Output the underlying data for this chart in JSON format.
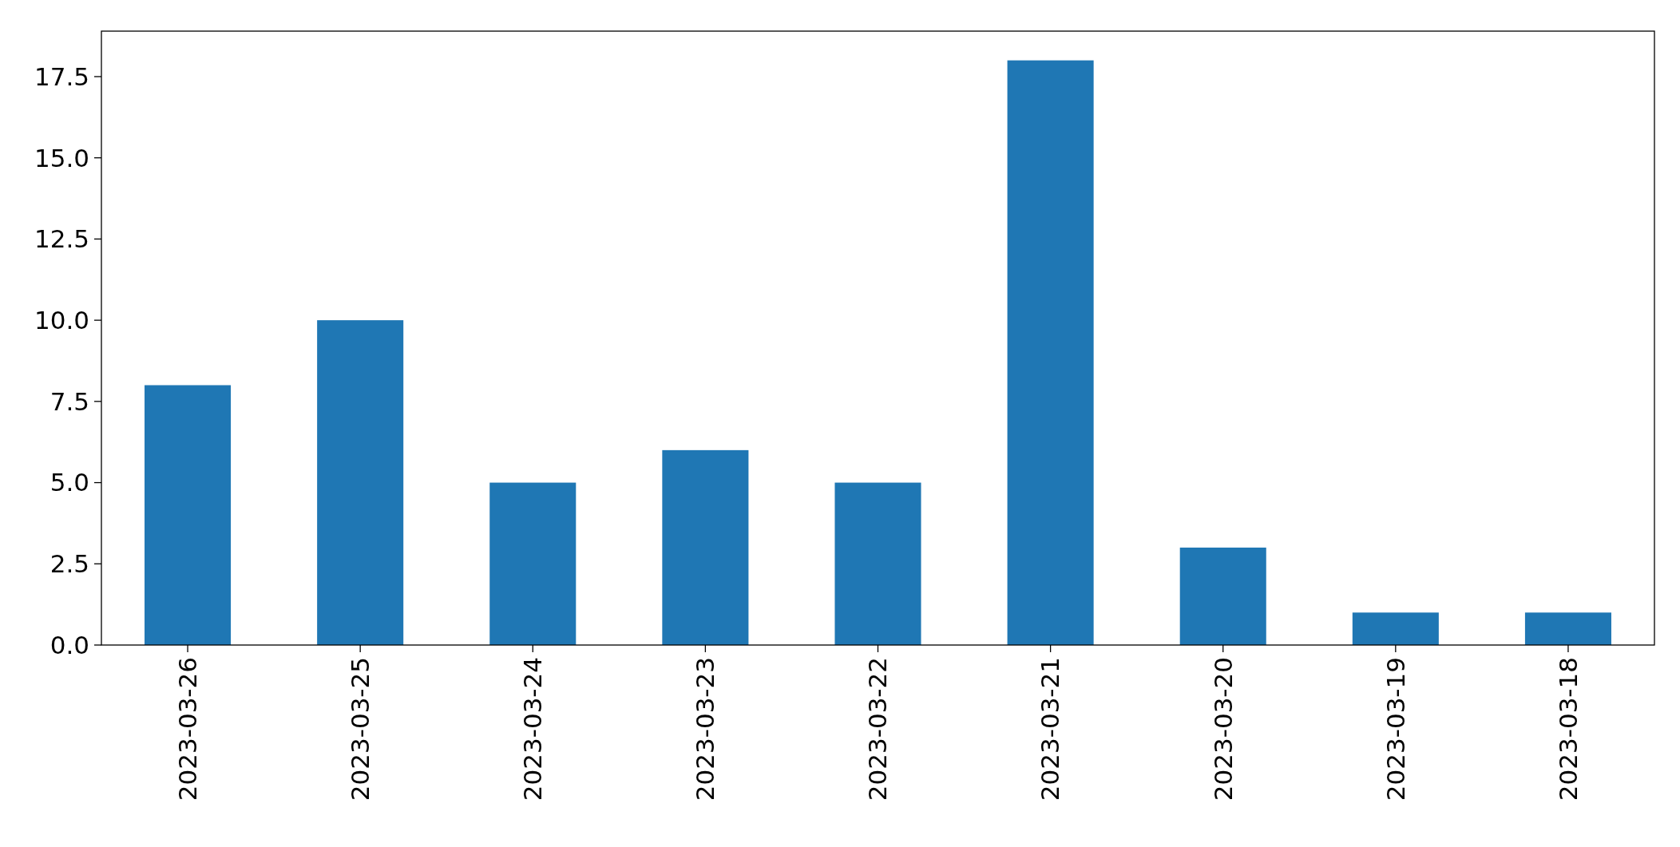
{
  "chart_data": {
    "type": "bar",
    "categories": [
      "2023-03-26",
      "2023-03-25",
      "2023-03-24",
      "2023-03-23",
      "2023-03-22",
      "2023-03-21",
      "2023-03-20",
      "2023-03-19",
      "2023-03-18"
    ],
    "values": [
      8,
      10,
      5,
      6,
      5,
      18,
      3,
      1,
      1
    ],
    "color": "#1f77b4",
    "ylim": [
      0,
      18.9
    ],
    "yticks": [
      {
        "value": 0,
        "label": "0.0"
      },
      {
        "value": 2.5,
        "label": "2.5"
      },
      {
        "value": 5,
        "label": "5.0"
      },
      {
        "value": 7.5,
        "label": "7.5"
      },
      {
        "value": 10,
        "label": "10.0"
      },
      {
        "value": 12.5,
        "label": "12.5"
      },
      {
        "value": 15,
        "label": "15.0"
      },
      {
        "value": 17.5,
        "label": "17.5"
      }
    ],
    "grid": false
  }
}
